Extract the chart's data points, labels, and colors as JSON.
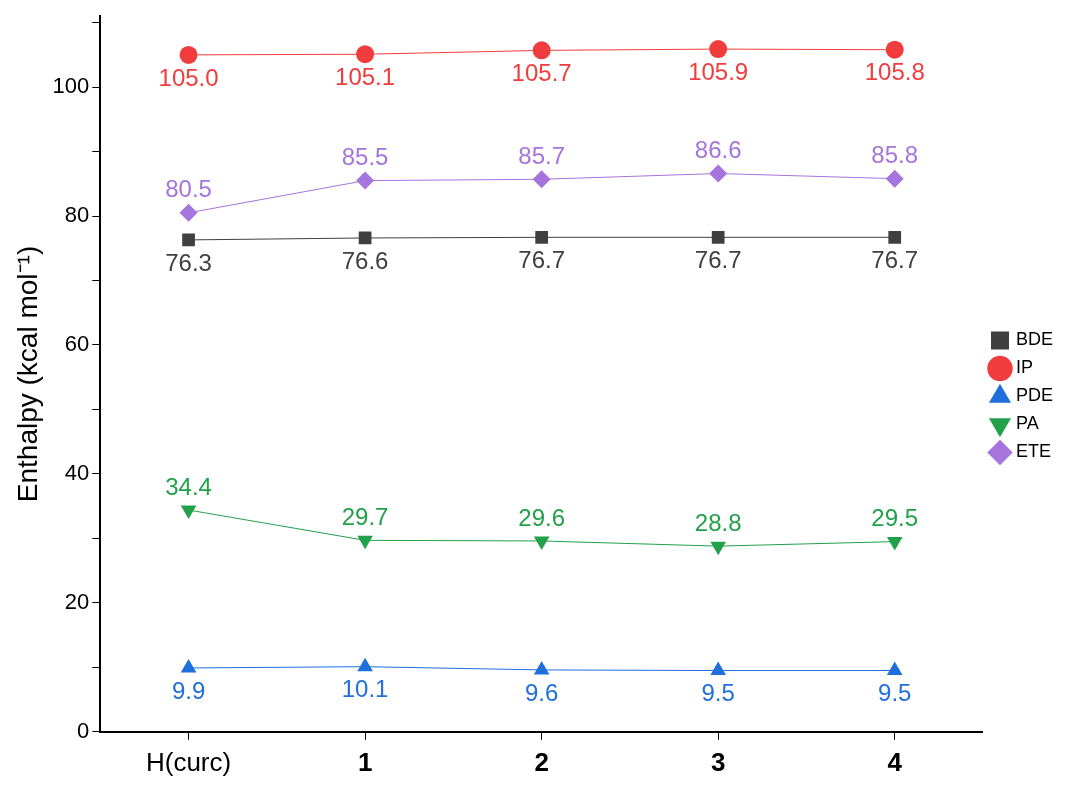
{
  "chart_data": {
    "type": "line",
    "ylabel": "Enthalpy (kcal mol⁻¹)",
    "categories": [
      "H(curc)",
      "1",
      "2",
      "3",
      "4"
    ],
    "ylim": [
      0,
      111
    ],
    "yticks": [
      0,
      {
        "value": 10,
        "label": null
      },
      20,
      {
        "value": 30,
        "label": null
      },
      40,
      {
        "value": 50,
        "label": null
      },
      60,
      {
        "value": 70,
        "label": null
      },
      80,
      {
        "value": 90,
        "label": null
      },
      100,
      {
        "value": 110,
        "label": null
      }
    ],
    "series": [
      {
        "name": "BDE",
        "color": "#404040",
        "marker": "square",
        "values": [
          76.3,
          76.6,
          76.7,
          76.7,
          76.7
        ],
        "value_labels": [
          "76.3",
          "76.6",
          "76.7",
          "76.7",
          "76.7"
        ]
      },
      {
        "name": "IP",
        "color": "#f03c3c",
        "marker": "circle",
        "values": [
          105.0,
          105.1,
          105.7,
          105.9,
          105.8
        ],
        "value_labels": [
          "105.0",
          "105.1",
          "105.7",
          "105.9",
          "105.8"
        ]
      },
      {
        "name": "PDE",
        "color": "#1f6fdc",
        "marker": "triangle",
        "values": [
          9.9,
          10.1,
          9.6,
          9.5,
          9.5
        ],
        "value_labels": [
          "9.9",
          "10.1",
          "9.6",
          "9.5",
          "9.5"
        ]
      },
      {
        "name": "PA",
        "color": "#23a04a",
        "marker": "triangle-down",
        "values": [
          34.4,
          29.7,
          29.6,
          28.8,
          29.5
        ],
        "value_labels": [
          "34.4",
          "29.7",
          "29.6",
          "28.8",
          "29.5"
        ]
      },
      {
        "name": "ETE",
        "color": "#a574dc",
        "marker": "diamond",
        "values": [
          80.5,
          85.5,
          85.7,
          86.6,
          85.8
        ],
        "value_labels": [
          "80.5",
          "85.5",
          "85.7",
          "86.6",
          "85.8"
        ]
      }
    ],
    "grid": false,
    "legend": "right",
    "line_style": "solid"
  }
}
